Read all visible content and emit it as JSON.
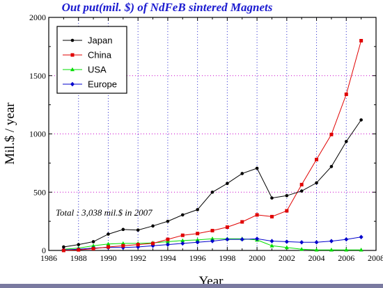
{
  "chart_data": {
    "type": "line",
    "title": "Out put(mil. $) of NdFeB sintered Magnets",
    "xlabel": "Year",
    "ylabel": "Mil.$ / year",
    "xlim": [
      1986,
      2008
    ],
    "ylim": [
      0,
      2000
    ],
    "xticks": [
      "1986",
      "1988",
      "1990",
      "1992",
      "1994",
      "1996",
      "1998",
      "2000",
      "2002",
      "2004",
      "2006",
      "2008"
    ],
    "yticks": [
      "0",
      "500",
      "1000",
      "1500",
      "2000"
    ],
    "grid": "vertical dotted",
    "legend_position": "top-left",
    "annotation": "Total : 3,038 mil.$ in 2007",
    "x": [
      1987,
      1988,
      1989,
      1990,
      1991,
      1992,
      1993,
      1994,
      1995,
      1996,
      1997,
      1998,
      1999,
      2000,
      2001,
      2002,
      2003,
      2004,
      2005,
      2006,
      2007
    ],
    "series": [
      {
        "name": "Japan",
        "color": "#000000",
        "marker": "circle",
        "values": [
          30,
          50,
          75,
          140,
          180,
          175,
          210,
          250,
          305,
          350,
          500,
          575,
          660,
          705,
          450,
          470,
          510,
          580,
          720,
          935,
          1120
        ]
      },
      {
        "name": "China",
        "color": "#e00000",
        "marker": "square",
        "values": [
          0,
          5,
          15,
          30,
          40,
          50,
          60,
          95,
          130,
          145,
          170,
          200,
          245,
          305,
          290,
          340,
          565,
          780,
          995,
          1340,
          1800
        ]
      },
      {
        "name": "USA",
        "color": "#00dd00",
        "marker": "triangle",
        "values": [
          10,
          20,
          40,
          55,
          60,
          60,
          65,
          75,
          85,
          90,
          100,
          100,
          100,
          90,
          40,
          25,
          10,
          5,
          5,
          5,
          5
        ]
      },
      {
        "name": "Europe",
        "color": "#0000cc",
        "marker": "diamond",
        "values": [
          5,
          10,
          20,
          25,
          25,
          30,
          40,
          50,
          60,
          70,
          80,
          95,
          95,
          100,
          80,
          75,
          70,
          70,
          80,
          95,
          115
        ]
      }
    ]
  }
}
